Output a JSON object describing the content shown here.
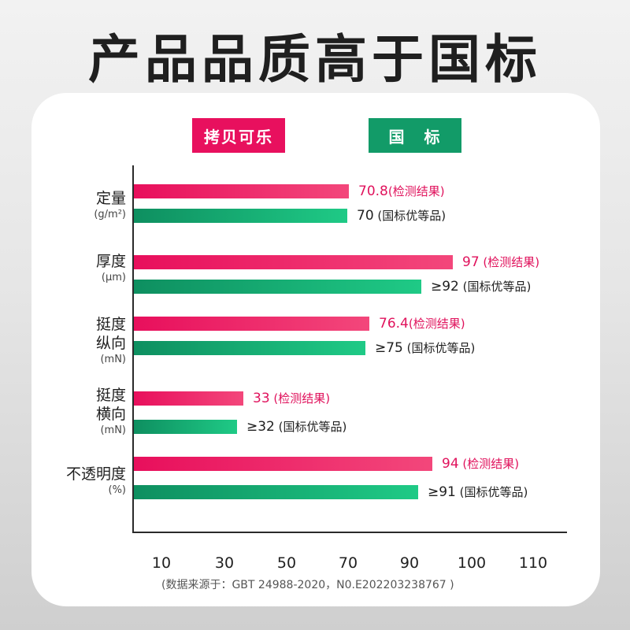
{
  "headline": "产品品质高于国标",
  "legend": {
    "ours": "拷贝可乐",
    "standard": "国 标"
  },
  "colors": {
    "ours": "#e8105e",
    "standard": "#129b68",
    "ours_text": "#e0125c"
  },
  "chart_data": {
    "type": "bar",
    "orientation": "horizontal",
    "categories": [
      {
        "label": "定量",
        "unit": "(g/m²)"
      },
      {
        "label": "厚度",
        "unit": "(μm)"
      },
      {
        "label": "挺度\n纵向",
        "unit": "(mN)"
      },
      {
        "label": "挺度\n横向",
        "unit": "(mN)"
      },
      {
        "label": "不透明度",
        "unit": "(%)"
      }
    ],
    "series": [
      {
        "name": "拷贝可乐",
        "values": [
          70.8,
          97,
          76.4,
          33,
          94
        ],
        "labels": [
          {
            "num": "70.8",
            "note": "(检测结果)"
          },
          {
            "num": "97",
            "note": " (检测结果)"
          },
          {
            "num": "76.4",
            "note": "(检测结果)"
          },
          {
            "num": "33",
            "note": " (检测结果)"
          },
          {
            "num": "94",
            "note": " (检测结果)"
          }
        ]
      },
      {
        "name": "国 标",
        "values": [
          70,
          92,
          75,
          32,
          91
        ],
        "labels": [
          {
            "num": "70",
            "note": " (国标优等品)"
          },
          {
            "num": "≥92",
            "note": " (国标优等品)"
          },
          {
            "num": "≥75",
            "note": " (国标优等品)"
          },
          {
            "num": "≥32",
            "note": " (国标优等品)"
          },
          {
            "num": "≥91",
            "note": " (国标优等品)"
          }
        ]
      }
    ],
    "x_ticks": [
      "10",
      "30",
      "50",
      "70",
      "90",
      "100",
      "110"
    ],
    "xlim": [
      0,
      110
    ],
    "source_note": "(数据来源于：GBT 24988-2020，N0.E202203238767 )"
  }
}
